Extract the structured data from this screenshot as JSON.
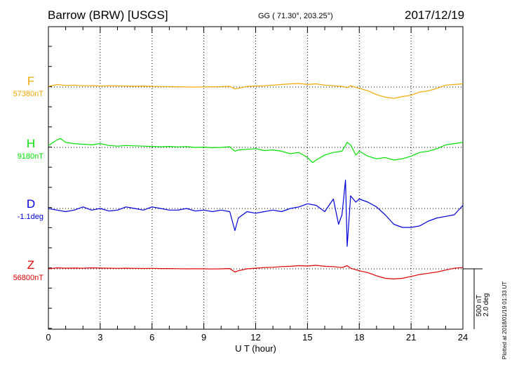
{
  "header": {
    "station": "Barrow (BRW)  [USGS]",
    "coords": "GG ( 71.30°, 203.25°)",
    "date": "2017/12/19"
  },
  "footer": {
    "xlabel": "U T (hour)",
    "plotted": "Plotted at 2018/01/19 01:33 UT",
    "scale_line1": "500 nT",
    "scale_line2": "2.0 deg"
  },
  "colors": {
    "F": "#f5a800",
    "H": "#00e000",
    "D": "#0000dd",
    "Z": "#e00000"
  },
  "chart_data": {
    "type": "line",
    "title": "Barrow (BRW)  [USGS]",
    "xlabel": "U T (hour)",
    "xlim": [
      0,
      24
    ],
    "x_ticks": [
      0,
      3,
      6,
      9,
      12,
      15,
      18,
      21,
      24
    ],
    "grid": true,
    "scale_bar": {
      "nT": 500,
      "deg": 2.0
    },
    "series": [
      {
        "name": "F",
        "baseline": "57380nT",
        "baseline_value": 57380,
        "unit": "nT",
        "x": [
          0,
          0.5,
          1,
          1.5,
          2,
          2.5,
          3,
          3.5,
          4,
          4.5,
          5,
          5.5,
          6,
          6.5,
          7,
          7.5,
          8,
          8.5,
          9,
          9.5,
          10,
          10.5,
          10.8,
          11,
          11.5,
          12,
          12.5,
          13,
          13.5,
          14,
          14.5,
          15,
          15.5,
          16,
          16.5,
          17,
          17.3,
          17.5,
          18,
          18.5,
          19,
          19.5,
          20,
          20.5,
          21,
          21.5,
          22,
          22.5,
          23,
          23.5,
          24
        ],
        "values": [
          5,
          20,
          12,
          15,
          10,
          11,
          8,
          10,
          9,
          8,
          6,
          8,
          5,
          4,
          3,
          2,
          1,
          0,
          1,
          2,
          3,
          5,
          -15,
          -10,
          5,
          8,
          10,
          15,
          20,
          25,
          28,
          20,
          25,
          15,
          10,
          5,
          -5,
          10,
          -10,
          -30,
          -60,
          -80,
          -90,
          -75,
          -65,
          -40,
          -30,
          -10,
          15,
          20,
          25
        ]
      },
      {
        "name": "H",
        "baseline": "9180nT",
        "baseline_value": 9180,
        "unit": "nT",
        "x": [
          0,
          0.5,
          0.7,
          1,
          1.5,
          2,
          2.5,
          3,
          3.5,
          4,
          4.5,
          5,
          5.5,
          6,
          6.5,
          7,
          7.5,
          8,
          8.5,
          9,
          9.5,
          10,
          10.5,
          10.8,
          11,
          11.5,
          12,
          12.5,
          13,
          13.5,
          14,
          14.5,
          15,
          15.3,
          15.5,
          16,
          16.5,
          17,
          17.3,
          17.5,
          17.8,
          18,
          18.5,
          19,
          19.5,
          20,
          20.5,
          21,
          21.5,
          22,
          22.5,
          23,
          23.5,
          24
        ],
        "values": [
          15,
          60,
          70,
          40,
          30,
          25,
          20,
          30,
          15,
          10,
          15,
          12,
          10,
          8,
          5,
          8,
          4,
          6,
          0,
          2,
          -2,
          0,
          5,
          -30,
          -20,
          -15,
          -10,
          -25,
          -20,
          -30,
          -50,
          -40,
          -80,
          -120,
          -100,
          -60,
          -40,
          -30,
          40,
          20,
          -60,
          -30,
          -70,
          -90,
          -80,
          -100,
          -90,
          -70,
          -40,
          -30,
          -10,
          20,
          30,
          40
        ]
      },
      {
        "name": "D",
        "baseline": "-1.1deg",
        "baseline_value": -1.1,
        "unit": "deg",
        "x": [
          0,
          0.5,
          1,
          1.5,
          2,
          2.5,
          3,
          3.5,
          4,
          4.5,
          5,
          5.5,
          6,
          6.5,
          7,
          7.5,
          8,
          8.5,
          9,
          9.5,
          10,
          10.5,
          10.8,
          11,
          11.5,
          12,
          12.5,
          13,
          13.5,
          14,
          14.5,
          15,
          15.5,
          16,
          16.5,
          16.8,
          17,
          17.2,
          17.3,
          17.5,
          17.8,
          18,
          18.5,
          19,
          19.5,
          20,
          20.5,
          21,
          21.5,
          22,
          22.5,
          23,
          23.5,
          24
        ],
        "values": [
          0,
          -5,
          -10,
          -5,
          5,
          -5,
          0,
          -8,
          -5,
          5,
          0,
          -5,
          5,
          0,
          -5,
          -5,
          0,
          -8,
          -5,
          -10,
          -5,
          -10,
          -70,
          -30,
          -10,
          -15,
          -10,
          -5,
          -10,
          0,
          5,
          15,
          10,
          -10,
          30,
          -50,
          -20,
          90,
          -120,
          40,
          20,
          30,
          20,
          5,
          -20,
          -50,
          -60,
          -60,
          -55,
          -40,
          -30,
          -25,
          -20,
          10
        ]
      },
      {
        "name": "Z",
        "baseline": "56800nT",
        "baseline_value": 56800,
        "unit": "nT",
        "x": [
          0,
          0.5,
          1,
          1.5,
          2,
          2.5,
          3,
          3.5,
          4,
          4.5,
          5,
          5.5,
          6,
          6.5,
          7,
          7.5,
          8,
          8.5,
          9,
          9.5,
          10,
          10.5,
          10.8,
          11,
          11.5,
          12,
          12.5,
          13,
          13.5,
          14,
          14.5,
          15,
          15.5,
          16,
          16.5,
          17,
          17.3,
          17.5,
          18,
          18.5,
          19,
          19.5,
          20,
          20.5,
          21,
          21.5,
          22,
          22.5,
          23,
          23.5,
          24
        ],
        "values": [
          0,
          8,
          5,
          6,
          5,
          8,
          6,
          5,
          4,
          5,
          4,
          3,
          4,
          2,
          2,
          1,
          0,
          1,
          0,
          -1,
          0,
          2,
          -25,
          -15,
          0,
          5,
          10,
          12,
          18,
          20,
          25,
          22,
          28,
          20,
          18,
          10,
          25,
          5,
          -15,
          -30,
          -55,
          -75,
          -80,
          -75,
          -60,
          -45,
          -35,
          -25,
          -10,
          5,
          10
        ]
      }
    ]
  }
}
